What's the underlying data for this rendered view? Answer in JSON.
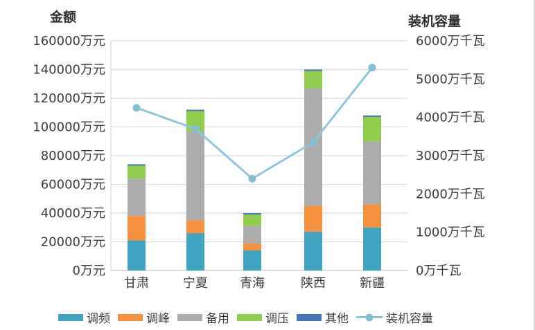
{
  "chart_data": {
    "type": "bar",
    "subtype": "stacked-column-with-secondary-axis-line",
    "categories": [
      "甘肃",
      "宁夏",
      "青海",
      "陕西",
      "新疆"
    ],
    "bar_series": [
      {
        "name": "调频",
        "color": "#3fa5c0",
        "values": [
          21000,
          26000,
          14000,
          27000,
          30000
        ]
      },
      {
        "name": "调峰",
        "color": "#f6913e",
        "values": [
          17000,
          9000,
          5000,
          18000,
          16000
        ]
      },
      {
        "name": "备用",
        "color": "#acacac",
        "values": [
          26000,
          62000,
          12000,
          82000,
          44000
        ]
      },
      {
        "name": "调压",
        "color": "#8fce4d",
        "values": [
          9000,
          14000,
          8000,
          12000,
          17000
        ]
      },
      {
        "name": "其他",
        "color": "#4576b8",
        "values": [
          1000,
          1000,
          1000,
          1000,
          1000
        ]
      }
    ],
    "line_series": {
      "name": "装机容量",
      "color": "#8fc7d9",
      "marker_color": "#83bfd3",
      "axis": "right",
      "values": [
        4250,
        3700,
        2400,
        3350,
        5300
      ]
    },
    "left_axis": {
      "title": "金额",
      "min": 0,
      "max": 160000,
      "step": 20000,
      "unit": "万元"
    },
    "right_axis": {
      "title": "装机容量",
      "min": 0,
      "max": 6000,
      "step": 1000,
      "unit": "万千瓦"
    },
    "grid": true,
    "legend_position": "bottom",
    "colors": {
      "gridline": "#dcdcdc",
      "baseline": "#c8c8c8",
      "axis_line": "#d9d9d9",
      "text": "#3b3b3b"
    }
  }
}
